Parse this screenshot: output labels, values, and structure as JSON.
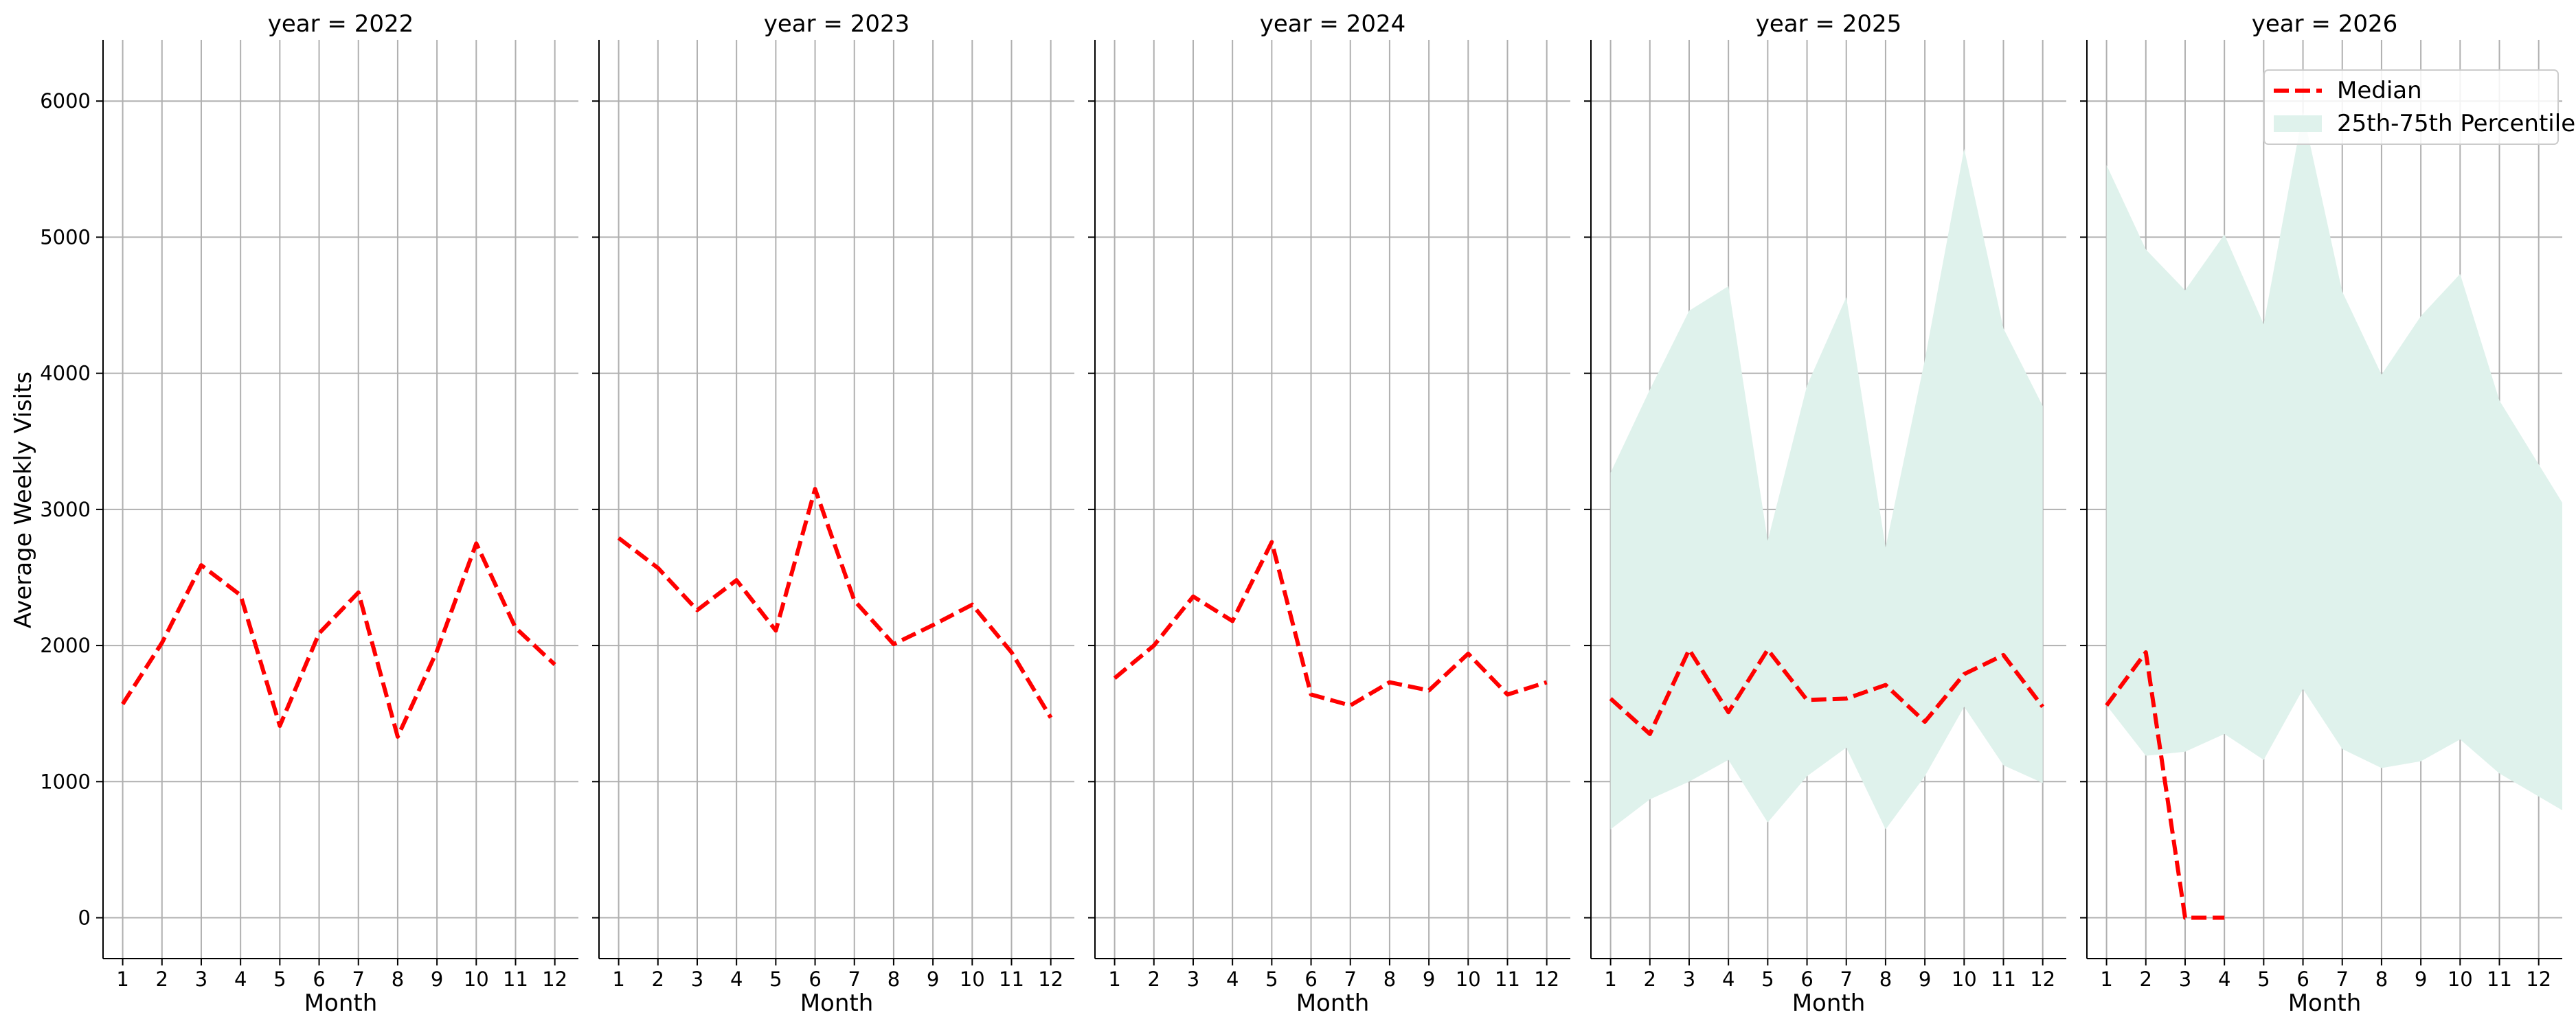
{
  "chart_data": {
    "type": "line",
    "ylabel": "Average Weekly Visits",
    "xlabel": "Month",
    "ylim": [
      -300,
      6450
    ],
    "yticks": [
      0,
      1000,
      2000,
      3000,
      4000,
      5000,
      6000
    ],
    "xticks": [
      1,
      2,
      3,
      4,
      5,
      6,
      7,
      8,
      9,
      10,
      11,
      12
    ],
    "xlim": [
      0.5,
      12.6
    ],
    "grid": true,
    "legend": {
      "placement": "top-right",
      "panel": 4,
      "entries": [
        "Median",
        "25th-75th Percentile"
      ]
    },
    "colors": {
      "median": "#ff0000",
      "band": "#dff2ec"
    },
    "panels": [
      {
        "title": "year = 2022",
        "median": {
          "x": [
            1,
            2,
            3,
            4,
            5,
            6,
            7,
            8,
            9,
            10,
            11,
            12
          ],
          "y": [
            1570,
            2020,
            2590,
            2370,
            1410,
            2090,
            2390,
            1330,
            1960,
            2750,
            2130,
            1860
          ]
        }
      },
      {
        "title": "year = 2023",
        "median": {
          "x": [
            1,
            2,
            3,
            4,
            5,
            6,
            7,
            8,
            9,
            10,
            11,
            12
          ],
          "y": [
            2790,
            2570,
            2260,
            2480,
            2110,
            3150,
            2330,
            2010,
            2150,
            2300,
            1950,
            1470
          ]
        }
      },
      {
        "title": "year = 2024",
        "median": {
          "x": [
            1,
            2,
            3,
            4,
            5,
            6,
            7,
            8,
            9,
            10,
            11,
            12
          ],
          "y": [
            1760,
            2000,
            2360,
            2180,
            2760,
            1640,
            1560,
            1730,
            1670,
            1940,
            1640,
            1730
          ]
        }
      },
      {
        "title": "year = 2025",
        "median": {
          "x": [
            1,
            2,
            3,
            4,
            5,
            6,
            7,
            8,
            9,
            10,
            11,
            12
          ],
          "y": [
            1610,
            1350,
            1970,
            1510,
            1970,
            1600,
            1610,
            1710,
            1440,
            1790,
            1930,
            1550
          ]
        },
        "band": {
          "x": [
            1,
            2,
            3,
            4,
            5,
            6,
            7,
            8,
            9,
            10,
            11,
            12
          ],
          "p25": [
            650,
            870,
            1000,
            1160,
            700,
            1040,
            1250,
            650,
            1040,
            1550,
            1120,
            990
          ],
          "p75": [
            3270,
            3880,
            4460,
            4640,
            2770,
            3910,
            4560,
            2720,
            4100,
            5650,
            4330,
            3760
          ]
        }
      },
      {
        "title": "year = 2026",
        "median": {
          "x": [
            1,
            2,
            3,
            4
          ],
          "y": [
            1560,
            1950,
            0,
            0
          ]
        },
        "band": {
          "x": [
            1,
            2,
            3,
            4,
            5,
            6,
            7,
            8,
            9,
            10,
            11,
            12.6
          ],
          "p25": [
            1560,
            1190,
            1220,
            1350,
            1160,
            1680,
            1240,
            1100,
            1150,
            1310,
            1060,
            790
          ],
          "p75": [
            5530,
            4910,
            4610,
            5020,
            4360,
            5920,
            4600,
            3990,
            4420,
            4730,
            3800,
            3050
          ]
        }
      }
    ]
  }
}
